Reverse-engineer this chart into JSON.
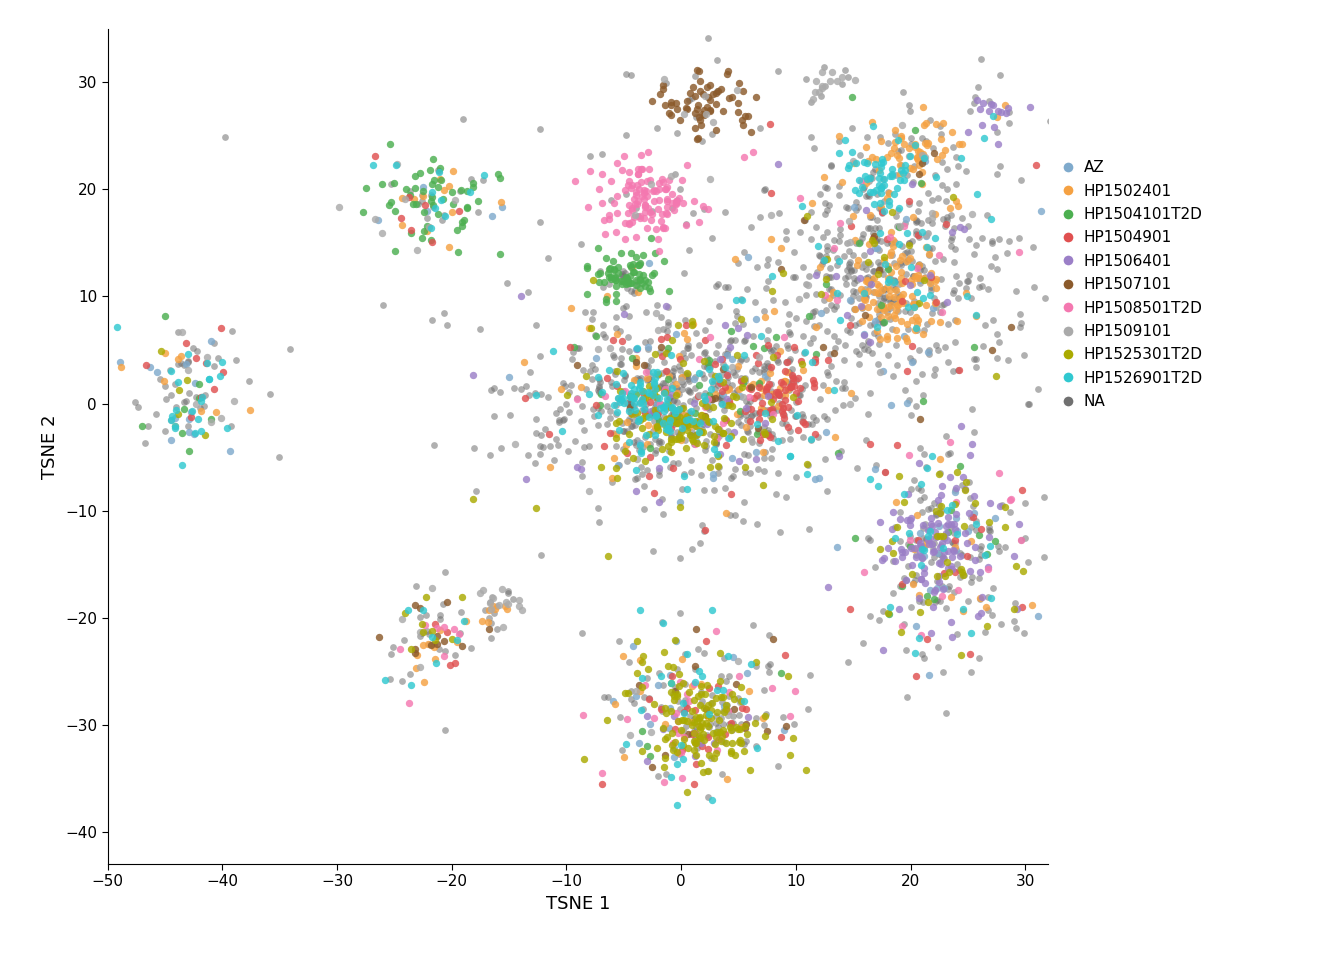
{
  "donors": [
    "AZ",
    "HP1502401",
    "HP1504101T2D",
    "HP1504901",
    "HP1506401",
    "HP1507101",
    "HP1508501T2D",
    "HP1509101",
    "HP1525301T2D",
    "HP1526901T2D",
    "NA"
  ],
  "colors": {
    "AZ": "#7FAACC",
    "HP1502401": "#F5A142",
    "HP1504101T2D": "#4CAF50",
    "HP1504901": "#E05050",
    "HP1506401": "#9B7FC7",
    "HP1507101": "#8B5A2B",
    "HP1508501T2D": "#F478B0",
    "HP1509101": "#AAAAAA",
    "HP1525301T2D": "#AAAA00",
    "HP1526901T2D": "#30C8D0",
    "NA": "#707070"
  },
  "xlabel": "TSNE 1",
  "ylabel": "TSNE 2",
  "xlim": [
    -50,
    32
  ],
  "ylim": [
    -43,
    35
  ],
  "point_size": 28,
  "background_color": "#ffffff",
  "legend_fontsize": 11,
  "axis_label_fontsize": 13,
  "tick_fontsize": 11
}
